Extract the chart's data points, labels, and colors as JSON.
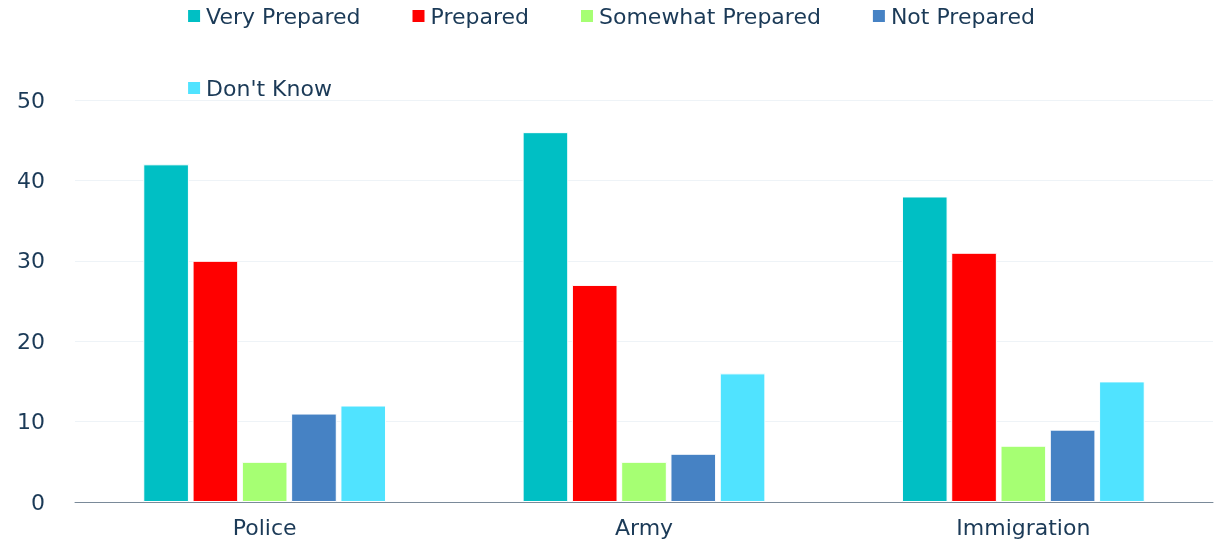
{
  "chart_data": {
    "type": "bar",
    "categories": [
      "Police",
      "Army",
      "Immigration"
    ],
    "series": [
      {
        "name": "Very Prepared",
        "color": "#00bfc4",
        "values": [
          42,
          46,
          38
        ]
      },
      {
        "name": "Prepared",
        "color": "#ff0000",
        "values": [
          30,
          27,
          31
        ]
      },
      {
        "name": "Somewhat Prepared",
        "color": "#a6ff73",
        "values": [
          5,
          5,
          7
        ]
      },
      {
        "name": "Not Prepared",
        "color": "#4682c4",
        "values": [
          11,
          6,
          9
        ]
      },
      {
        "name": "Don't Know",
        "color": "#50e3ff",
        "values": [
          12,
          16,
          15
        ]
      }
    ],
    "ylim": [
      0,
      50
    ],
    "yticks": [
      0,
      10,
      20,
      30,
      40,
      50
    ],
    "grid": "y",
    "legend": "top"
  }
}
